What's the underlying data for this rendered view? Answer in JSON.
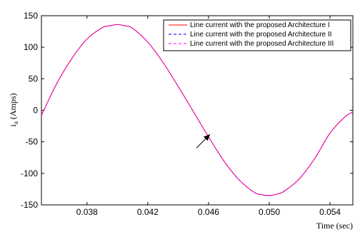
{
  "chart_data": {
    "type": "line",
    "title": "",
    "xlabel": "Time (sec)",
    "ylabel_main": "i",
    "ylabel_sub": "a",
    "ylabel_unit": "(Amps)",
    "xlim": [
      0.035,
      0.0555
    ],
    "ylim": [
      -150,
      150
    ],
    "xticks": [
      0.038,
      0.042,
      0.046,
      0.05,
      0.054
    ],
    "xtick_labels": [
      "0.038",
      "0.042",
      "0.046",
      "0.050",
      "0.054"
    ],
    "yticks": [
      150,
      100,
      50,
      0,
      -50,
      -100,
      -150
    ],
    "ytick_labels": [
      "150",
      "100",
      "50",
      "0",
      "-50",
      "-100",
      "-150"
    ],
    "grid": false,
    "legend_position": "top-right",
    "annotation": {
      "type": "arrow",
      "points_to": [
        0.0461,
        -38
      ],
      "from": [
        0.0452,
        -60
      ]
    },
    "series": [
      {
        "name": "Line current with the proposed Architecture I",
        "color": "#ff0000",
        "dash": "solid",
        "x": [
          0.035,
          0.036,
          0.037,
          0.038,
          0.039,
          0.0395,
          0.04,
          0.0405,
          0.041,
          0.042,
          0.043,
          0.044,
          0.045,
          0.046,
          0.047,
          0.048,
          0.049,
          0.0495,
          0.05,
          0.0505,
          0.051,
          0.052,
          0.053,
          0.054,
          0.055,
          0.0555
        ],
        "y": [
          -8,
          42,
          82,
          113,
          131,
          134,
          136,
          134,
          130,
          108,
          76,
          38,
          -2,
          -42,
          -80,
          -110,
          -130,
          -134,
          -135,
          -133,
          -128,
          -108,
          -76,
          -36,
          -10,
          -3
        ]
      },
      {
        "name": "Line current with the proposed Architecture II",
        "color": "#0000ff",
        "dash": "dashed",
        "x": [
          0.035,
          0.036,
          0.037,
          0.038,
          0.039,
          0.0395,
          0.04,
          0.0405,
          0.041,
          0.042,
          0.043,
          0.044,
          0.045,
          0.046,
          0.047,
          0.048,
          0.049,
          0.0495,
          0.05,
          0.0505,
          0.051,
          0.052,
          0.053,
          0.054,
          0.055,
          0.0555
        ],
        "y": [
          -8,
          42,
          82,
          113,
          131,
          134,
          136,
          134,
          130,
          108,
          76,
          38,
          -2,
          -42,
          -80,
          -110,
          -130,
          -134,
          -135,
          -133,
          -128,
          -108,
          -76,
          -36,
          -10,
          -3
        ]
      },
      {
        "name": "Line current with the proposed Architecture III",
        "color": "#ff00ff",
        "dash": "dashed",
        "x": [
          0.035,
          0.036,
          0.037,
          0.038,
          0.039,
          0.0395,
          0.04,
          0.0405,
          0.041,
          0.042,
          0.043,
          0.044,
          0.045,
          0.046,
          0.047,
          0.048,
          0.049,
          0.0495,
          0.05,
          0.0505,
          0.051,
          0.052,
          0.053,
          0.054,
          0.055,
          0.0555
        ],
        "y": [
          -8,
          42,
          82,
          113,
          131,
          134,
          136,
          134,
          130,
          108,
          76,
          38,
          -2,
          -42,
          -80,
          -110,
          -130,
          -134,
          -135,
          -133,
          -128,
          -108,
          -76,
          -36,
          -10,
          -3
        ]
      }
    ]
  }
}
